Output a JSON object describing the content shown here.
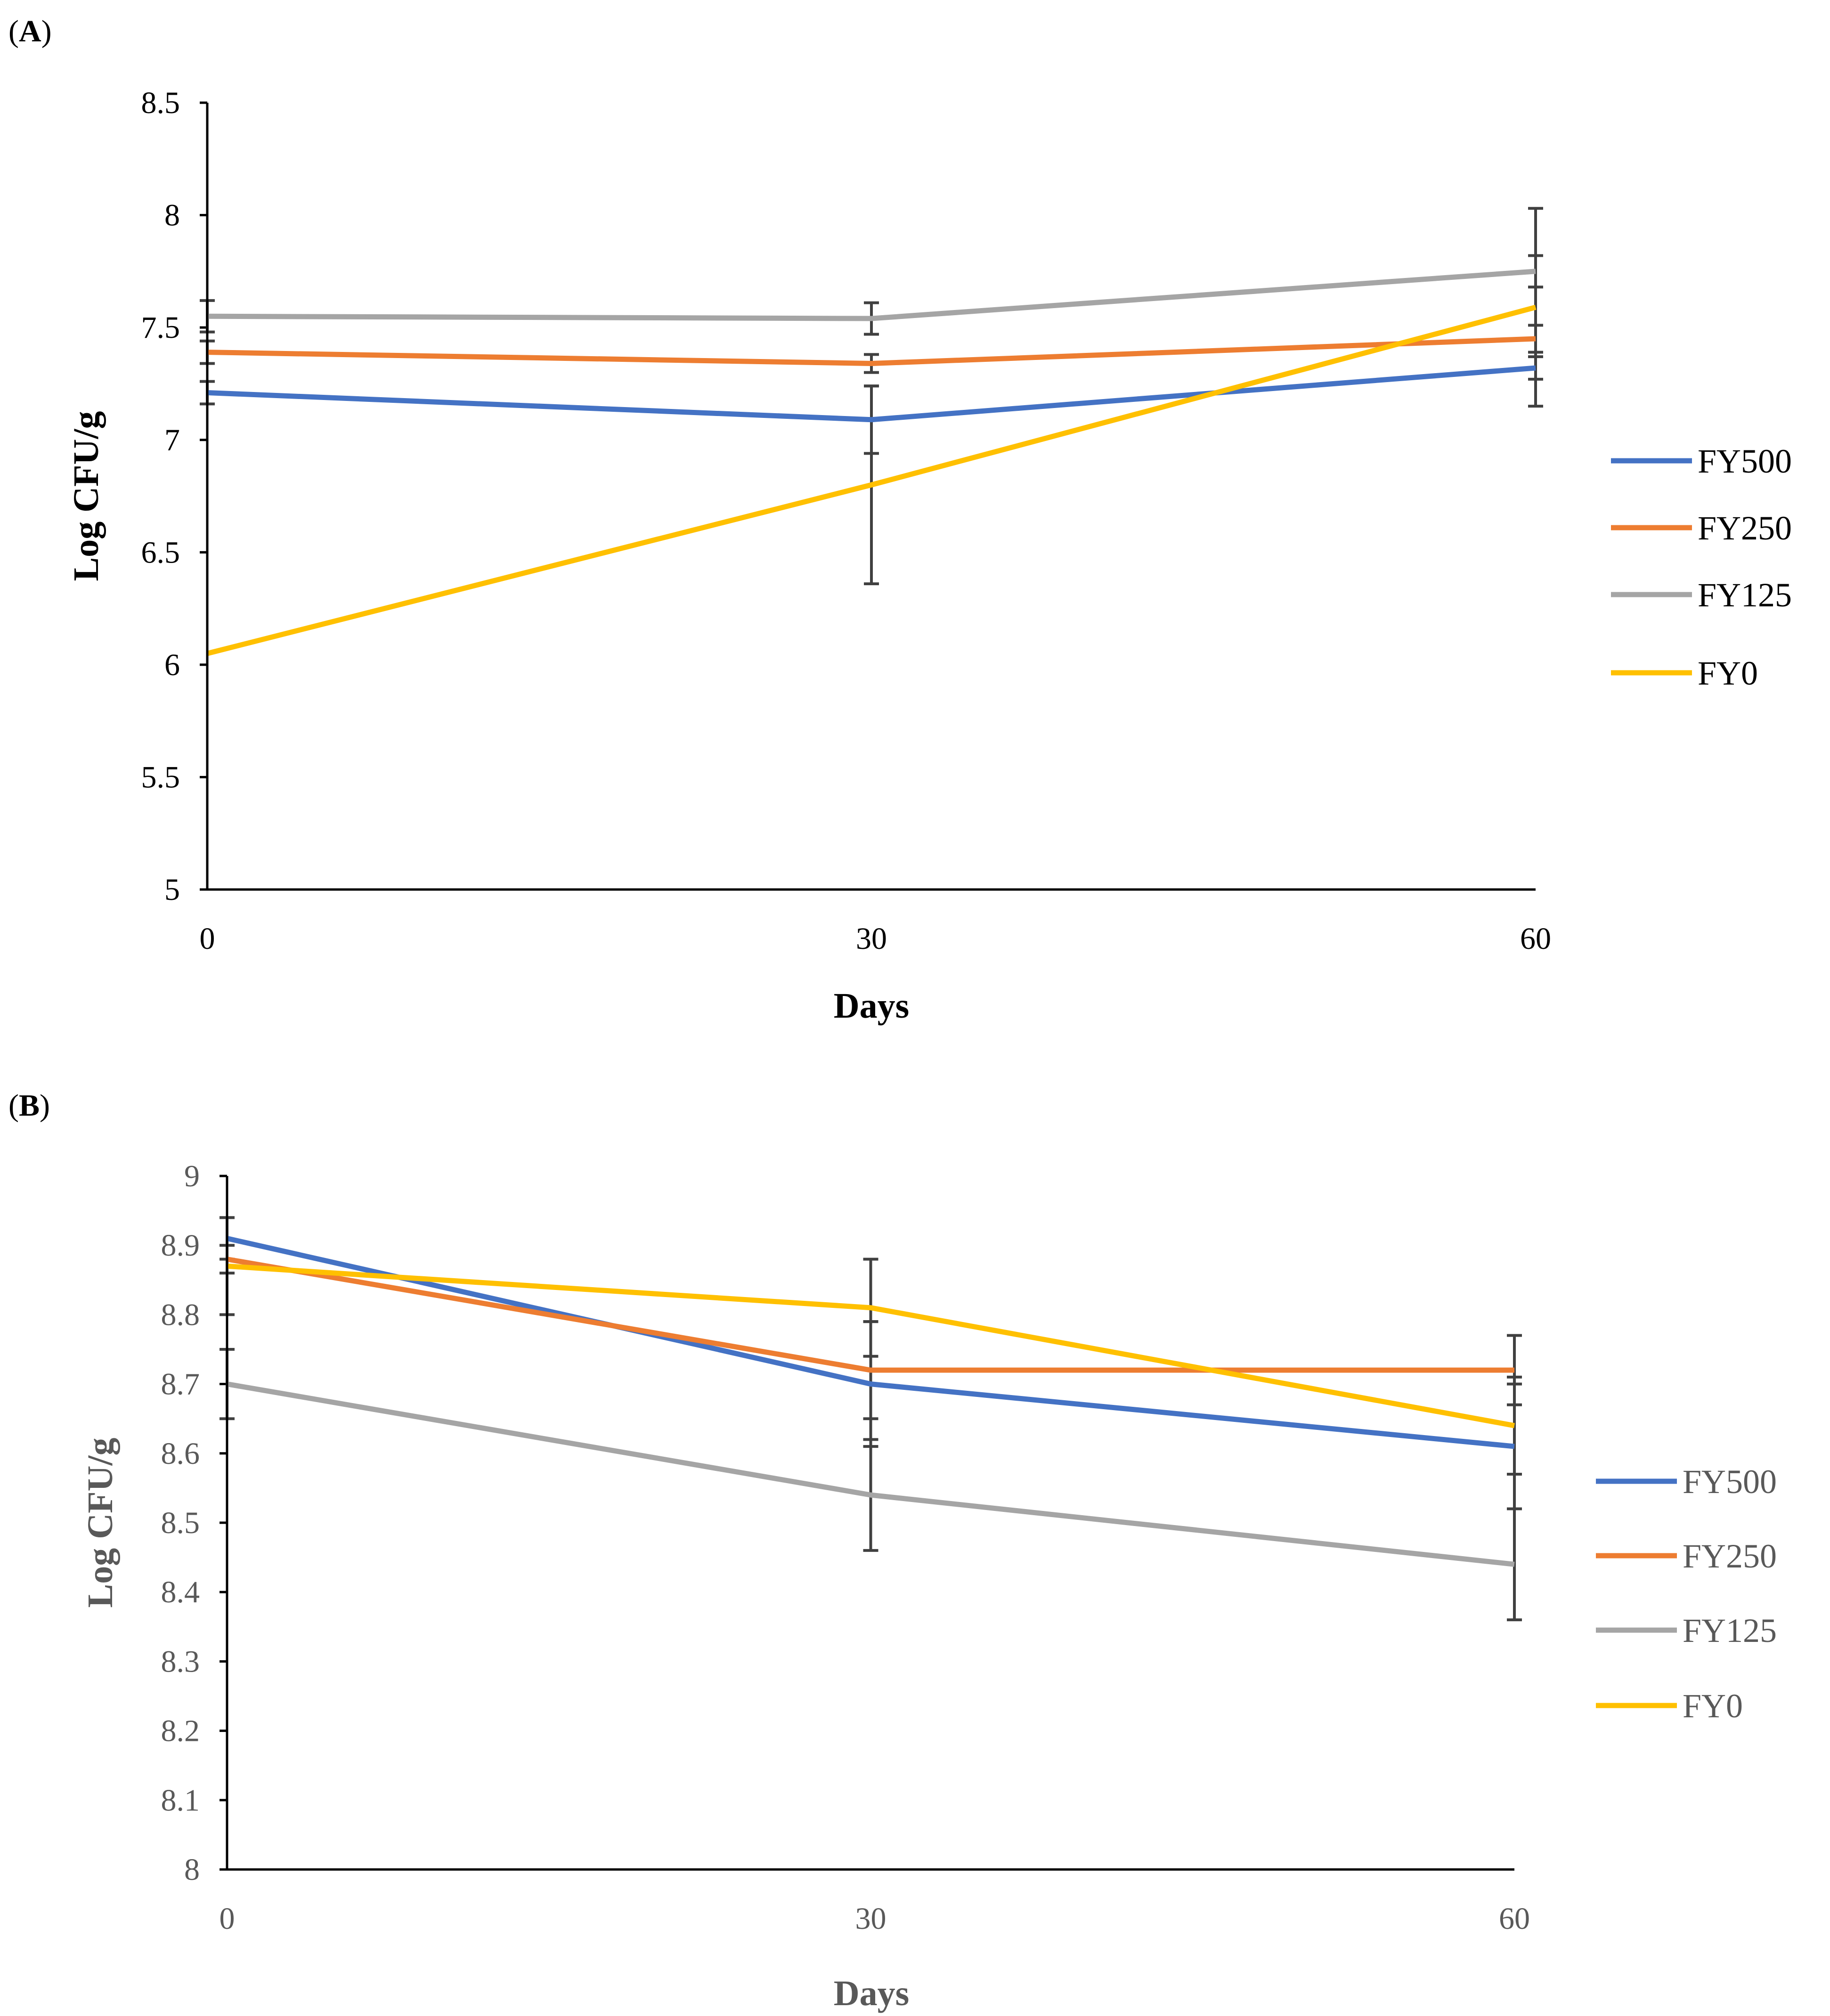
{
  "chart_data": [
    {
      "type": "line",
      "panel_label": "(A)",
      "panel_letter": "A",
      "xlabel": "Days",
      "ylabel": "Log CFU/g",
      "x": [
        0,
        30,
        60
      ],
      "x_tick_labels": [
        "0",
        "30",
        "60"
      ],
      "ylim": [
        5,
        8.5
      ],
      "y_ticks": [
        5,
        5.5,
        6,
        6.5,
        7,
        7.5,
        8,
        8.5
      ],
      "y_tick_labels": [
        "5",
        "5.5",
        "6",
        "6.5",
        "7",
        "7.5",
        "8",
        "8.5"
      ],
      "legend_position": "right",
      "series": [
        {
          "name": "FY500",
          "color": "#4472C4",
          "values": [
            7.21,
            7.09,
            7.32
          ],
          "errors": [
            0.05,
            0.15,
            0.05
          ]
        },
        {
          "name": "FY250",
          "color": "#ED7D31",
          "values": [
            7.39,
            7.34,
            7.45
          ],
          "errors": [
            0.05,
            0.04,
            0.06
          ]
        },
        {
          "name": "FY125",
          "color": "#A5A5A5",
          "values": [
            7.55,
            7.54,
            7.75
          ],
          "errors": [
            0.07,
            0.07,
            0.07
          ]
        },
        {
          "name": "FY0",
          "color": "#FFC000",
          "values": [
            6.05,
            6.8,
            7.59
          ],
          "errors": [
            0.0,
            0.44,
            0.44
          ]
        }
      ]
    },
    {
      "type": "line",
      "panel_label": "(B)",
      "panel_letter": "B",
      "xlabel": "Days",
      "ylabel": "Log CFU/g",
      "x": [
        0,
        30,
        60
      ],
      "x_tick_labels": [
        "0",
        "30",
        "60"
      ],
      "ylim": [
        8,
        9
      ],
      "y_ticks": [
        8,
        8.1,
        8.2,
        8.3,
        8.4,
        8.5,
        8.6,
        8.7,
        8.8,
        8.9,
        9
      ],
      "y_tick_labels": [
        "8",
        "8.1",
        "8.2",
        "8.3",
        "8.4",
        "8.5",
        "8.6",
        "8.7",
        "8.8",
        "8.9",
        "9"
      ],
      "legend_position": "right",
      "series": [
        {
          "name": "FY500",
          "color": "#4472C4",
          "values": [
            8.91,
            8.7,
            8.61
          ],
          "errors": [
            0.03,
            0.09,
            0.09
          ]
        },
        {
          "name": "FY250",
          "color": "#ED7D31",
          "values": [
            8.88,
            8.72,
            8.72
          ],
          "errors": [
            0.02,
            0.07,
            0.05
          ]
        },
        {
          "name": "FY125",
          "color": "#A5A5A5",
          "values": [
            8.7,
            8.54,
            8.44
          ],
          "errors": [
            0.05,
            0.08,
            0.08
          ]
        },
        {
          "name": "FY0",
          "color": "#FFC000",
          "values": [
            8.87,
            8.81,
            8.64
          ],
          "errors": [
            0.07,
            0.07,
            0.07
          ]
        }
      ]
    }
  ]
}
